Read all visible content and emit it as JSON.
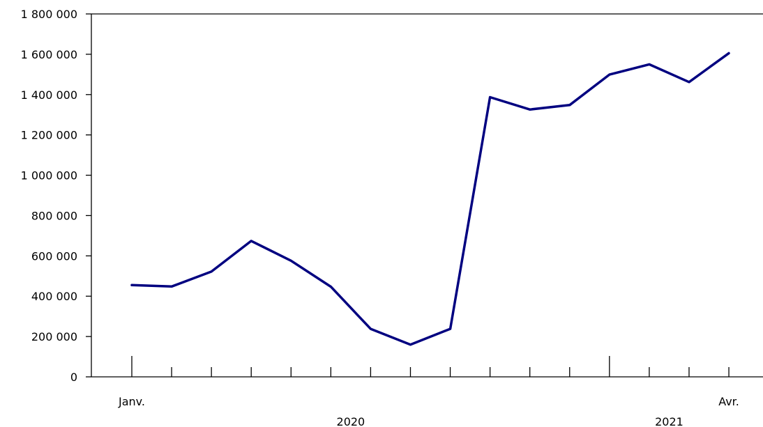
{
  "chart_data": {
    "type": "line",
    "title": "",
    "xlabel": "",
    "ylabel": "",
    "ylim": [
      0,
      1800000
    ],
    "yticks": [
      0,
      200000,
      400000,
      600000,
      800000,
      1000000,
      1200000,
      1400000,
      1600000,
      1800000
    ],
    "ytick_labels": [
      "0",
      "200 000",
      "400 000",
      "600 000",
      "800 000",
      "1 000 000",
      "1 200 000",
      "1 400 000",
      "1 600 000",
      "1 800 000"
    ],
    "x": [
      "2020-01",
      "2020-02",
      "2020-03",
      "2020-04",
      "2020-05",
      "2020-06",
      "2020-07",
      "2020-08",
      "2020-09",
      "2020-10",
      "2020-11",
      "2020-12",
      "2021-01",
      "2021-02",
      "2021-03",
      "2021-04"
    ],
    "x_tick_labels": [
      {
        "index": 0,
        "text": "Janv."
      },
      {
        "index": 15,
        "text": "Avr."
      }
    ],
    "year_labels": [
      {
        "text": "2020"
      },
      {
        "text": "2021"
      }
    ],
    "grid": false,
    "series": [
      {
        "color": "#000080",
        "values": [
          455000,
          448000,
          522000,
          674000,
          576000,
          447000,
          238000,
          160000,
          238000,
          1387000,
          1326000,
          1348000,
          1499000,
          1550000,
          1462000,
          1605000
        ]
      }
    ]
  }
}
